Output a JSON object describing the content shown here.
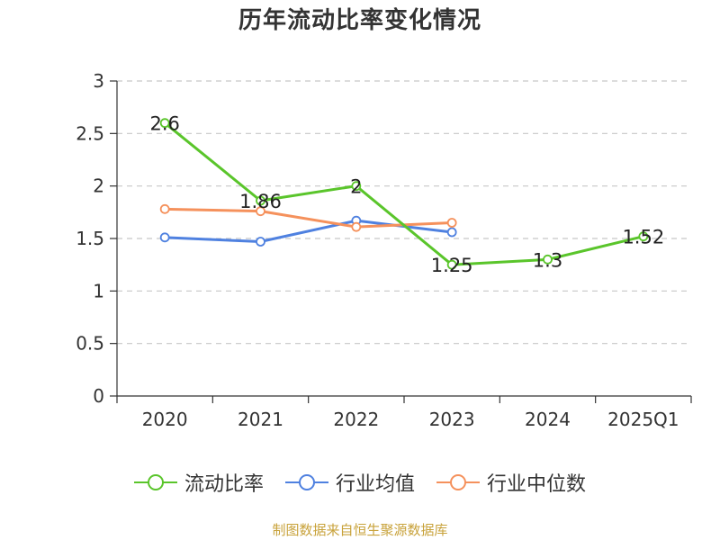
{
  "chart_data": {
    "type": "line",
    "title": "历年流动比率变化情况",
    "categories": [
      "2020",
      "2021",
      "2022",
      "2023",
      "2024",
      "2025Q1"
    ],
    "ylim": [
      0,
      3
    ],
    "yticks": [
      "0",
      "0.5",
      "1",
      "1.5",
      "2",
      "2.5",
      "3"
    ],
    "grid": true,
    "legend_placement": "bottom",
    "series": [
      {
        "name": "流动比率",
        "color": "#5ac52b",
        "values": [
          2.6,
          1.86,
          2.0,
          1.25,
          1.3,
          1.52
        ],
        "data_labels": [
          "2.6",
          "1.86",
          "2",
          "1.25",
          "1.3",
          "1.52"
        ]
      },
      {
        "name": "行业均值",
        "color": "#4f81e0",
        "values": [
          1.51,
          1.47,
          1.67,
          1.56,
          null,
          null
        ]
      },
      {
        "name": "行业中位数",
        "color": "#f5915c",
        "values": [
          1.78,
          1.76,
          1.61,
          1.65,
          null,
          null
        ]
      }
    ]
  },
  "source": "制图数据来自恒生聚源数据库"
}
